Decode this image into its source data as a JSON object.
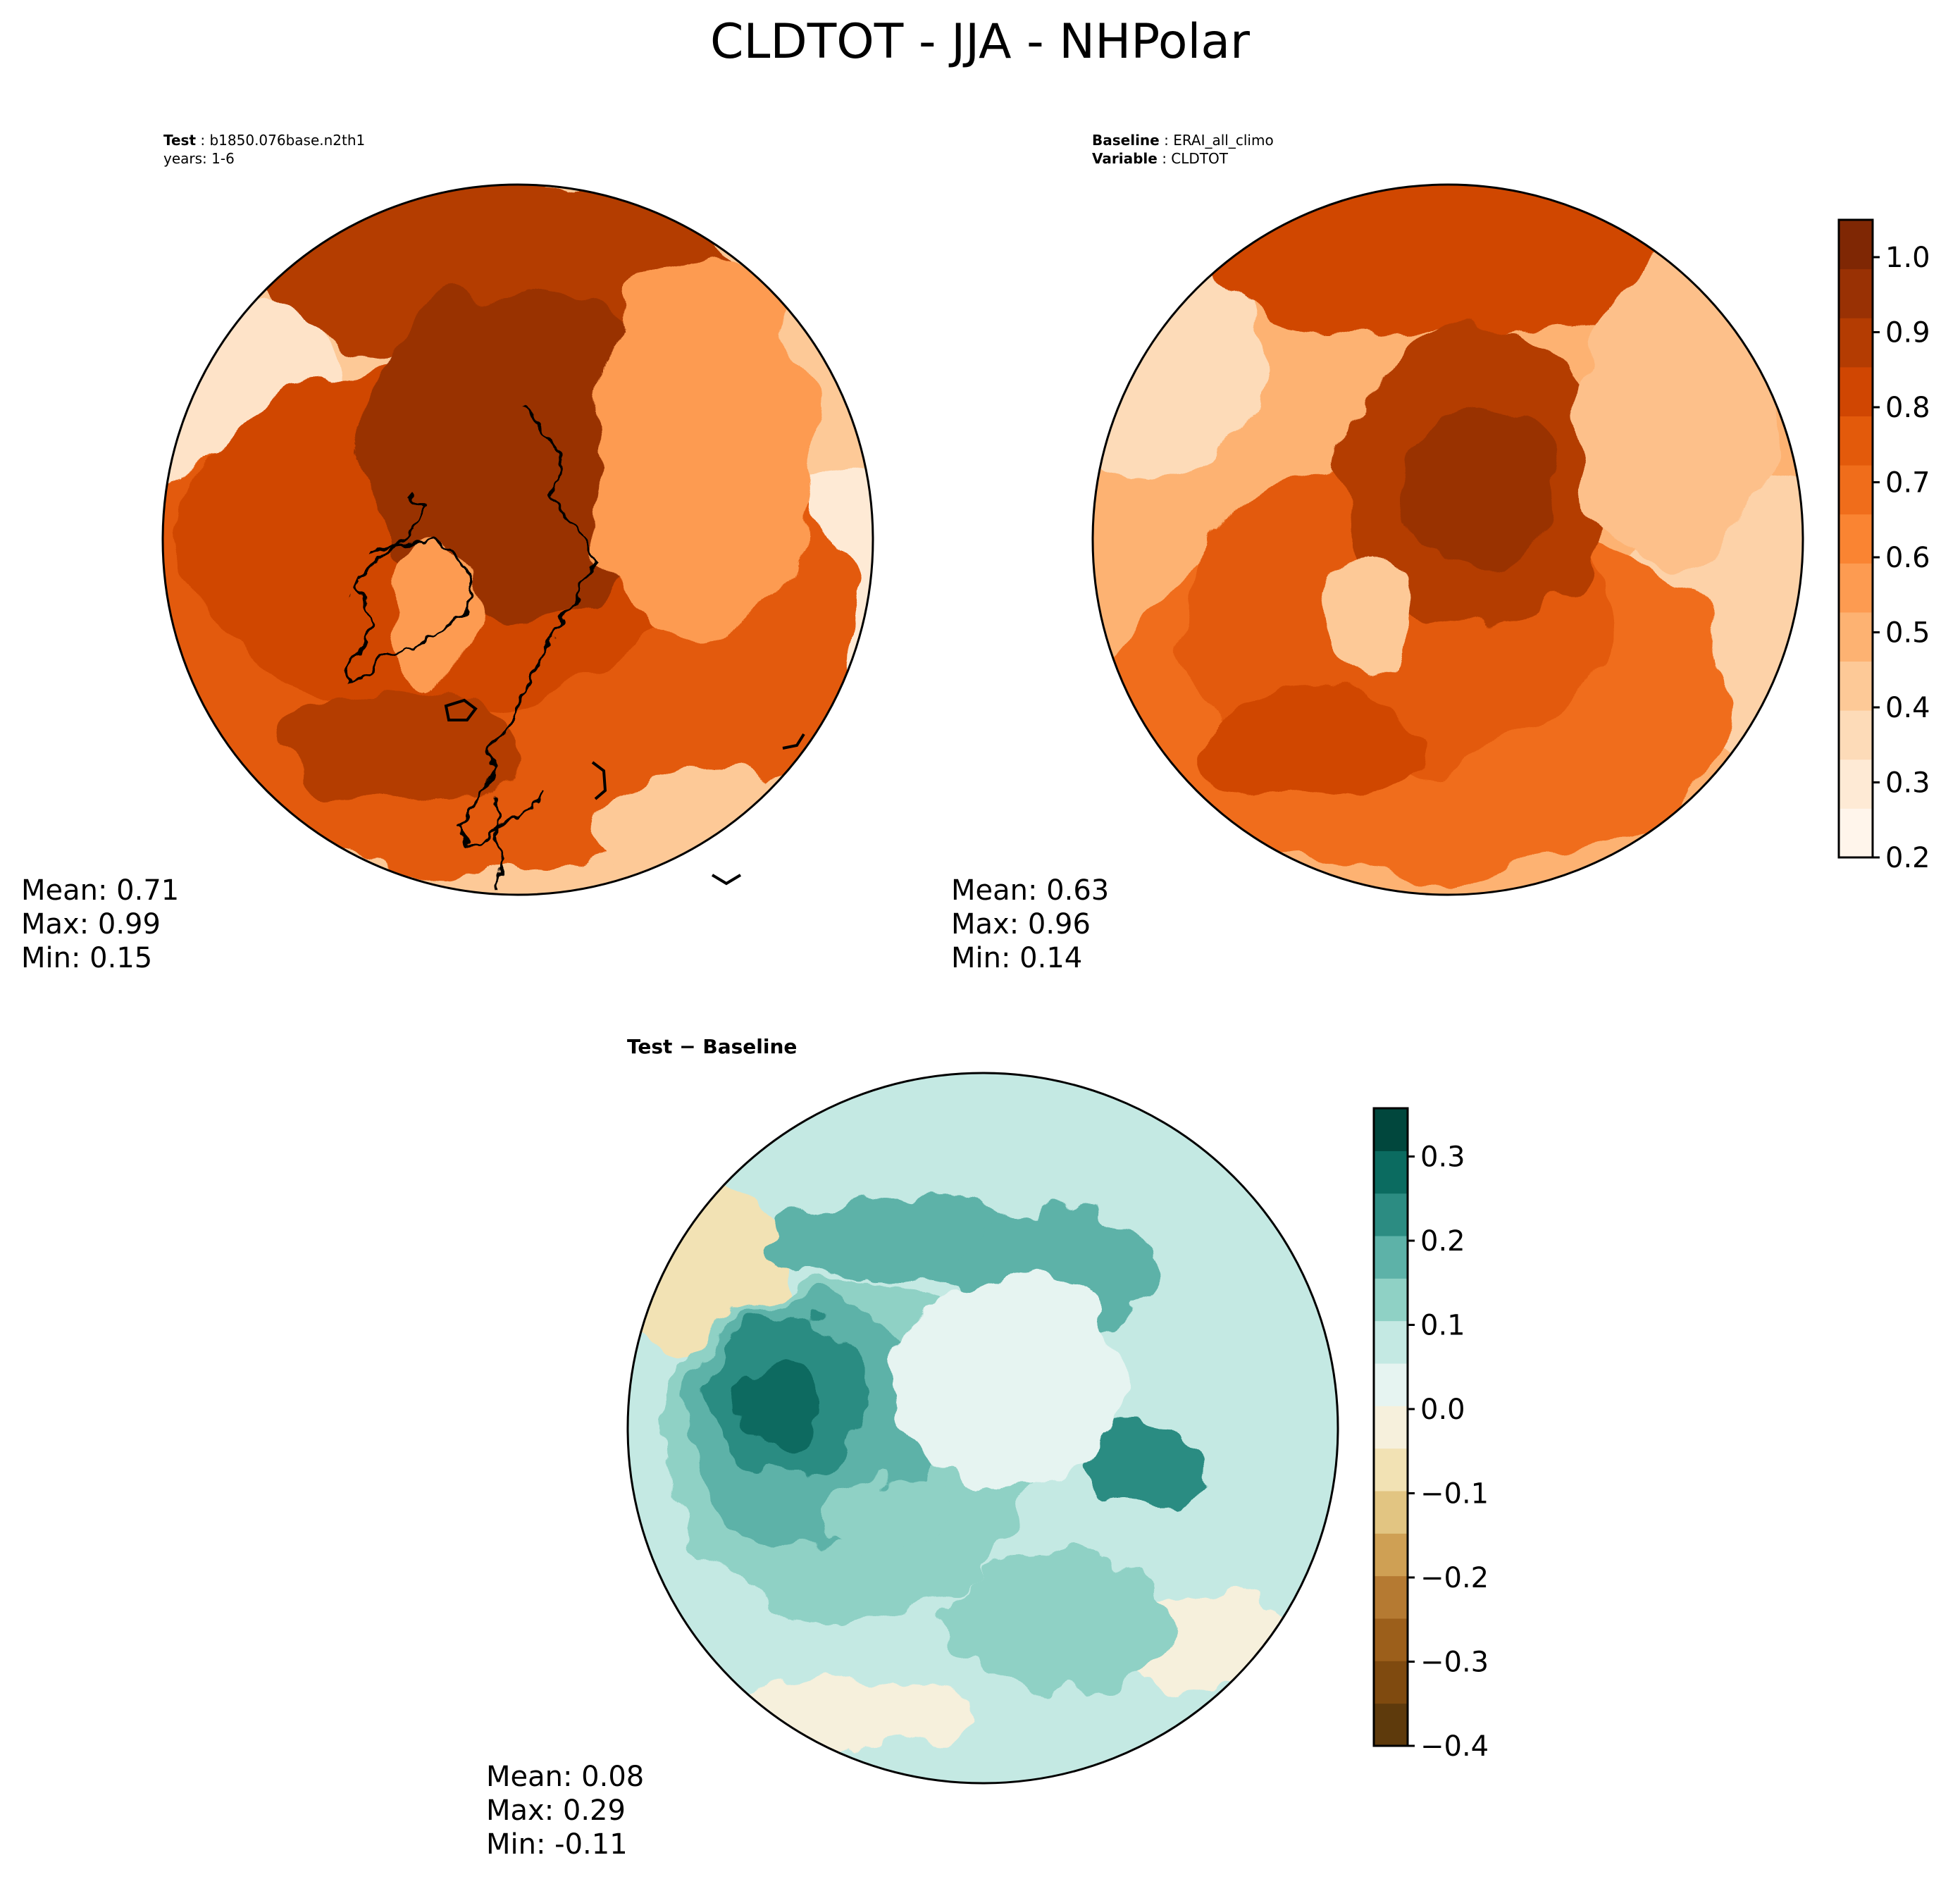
{
  "title": "CLDTOT - JJA - NHPolar",
  "panels": {
    "test": {
      "header": {
        "label": "Test",
        "value": "b1850.076base.n2th1",
        "line2": "years: 1-6"
      },
      "stats": {
        "mean": "Mean:  0.71",
        "max": "Max:  0.99",
        "min": "Min:  0.15"
      }
    },
    "baseline": {
      "header": {
        "label": "Baseline",
        "value": "ERAI_all_climo",
        "label2": "Variable",
        "value2": "CLDTOT"
      },
      "stats": {
        "mean": "Mean:  0.63",
        "max": "Max:  0.96",
        "min": "Min:  0.14"
      }
    },
    "diff": {
      "subtitle": "Test − Baseline",
      "stats": {
        "mean": "Mean:  0.08",
        "max": "Max:  0.29",
        "min": "Min: -0.11"
      }
    }
  },
  "colorbars": {
    "cloud": {
      "ticks": [
        "0.2",
        "0.3",
        "0.4",
        "0.5",
        "0.6",
        "0.7",
        "0.8",
        "0.9",
        "1.0"
      ],
      "colors": [
        "#fff5eb",
        "#feead5",
        "#fddbb8",
        "#fdc997",
        "#fdb272",
        "#fd9b51",
        "#fa8432",
        "#f06d1b",
        "#e35a0b",
        "#d04602",
        "#b43c02",
        "#993104",
        "#7f2704"
      ]
    },
    "diff": {
      "ticks": [
        "−0.4",
        "−0.3",
        "−0.2",
        "−0.1",
        "0.0",
        "0.1",
        "0.2",
        "0.3"
      ],
      "colors": [
        "#5e3a0c",
        "#7f4a0f",
        "#9c5f1b",
        "#b57a32",
        "#cfa054",
        "#e2c582",
        "#f2e2b4",
        "#f6f0dc",
        "#e6f4f1",
        "#c4e9e3",
        "#8fd1c5",
        "#5db2a8",
        "#2c8c82",
        "#0b6b60",
        "#01473d"
      ]
    }
  }
}
